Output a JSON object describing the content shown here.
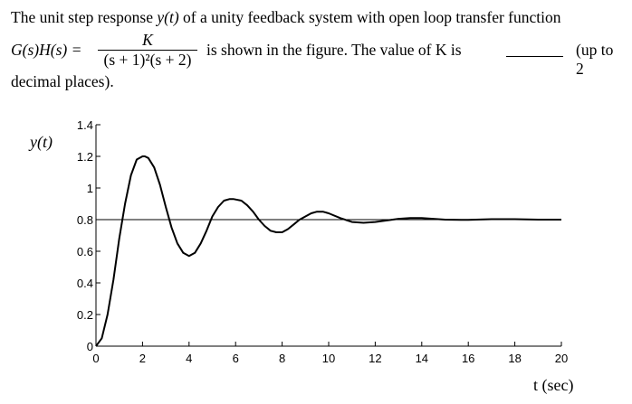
{
  "problem": {
    "line1_prefix": "The unit step response ",
    "line1_var": "y(t)",
    "line1_suffix": " of a unity feedback system with open loop transfer function",
    "lhs": "G(s)H(s) =",
    "numerator": "K",
    "denominator": "(s + 1)²(s + 2)",
    "line2_middle": "is shown in the figure. The value of K is",
    "line2_tail": "(up to 2",
    "line3": "decimal places)."
  },
  "chart_data": {
    "type": "line",
    "title": "",
    "ylabel": "y(t)",
    "xlabel": "t (sec)",
    "xlim": [
      0,
      20
    ],
    "ylim": [
      0,
      1.4
    ],
    "xticks": [
      0,
      2,
      4,
      6,
      8,
      10,
      12,
      14,
      16,
      18,
      20
    ],
    "yticks": [
      0,
      0.2,
      0.4,
      0.6,
      0.8,
      1,
      1.2,
      1.4
    ],
    "xtick_labels": [
      "0",
      "2",
      "4",
      "6",
      "8",
      "10",
      "12",
      "14",
      "16",
      "18",
      "20"
    ],
    "ytick_labels": [
      "0",
      "0.2",
      "0.4",
      "0.6",
      "0.8",
      "1",
      "1.2",
      "1.4"
    ],
    "reference_line": {
      "y": 0.8
    },
    "series": [
      {
        "x": [
          0,
          0.25,
          0.5,
          0.75,
          1,
          1.25,
          1.5,
          1.75,
          2,
          2.1,
          2.25,
          2.5,
          2.75,
          3,
          3.25,
          3.5,
          3.75,
          4,
          4.25,
          4.5,
          4.75,
          5,
          5.25,
          5.5,
          5.75,
          5.9,
          6.25,
          6.5,
          6.75,
          7,
          7.25,
          7.5,
          7.75,
          8,
          8.25,
          8.5,
          8.75,
          9,
          9.25,
          9.5,
          9.75,
          10,
          10.5,
          11,
          11.5,
          12,
          12.5,
          13,
          13.5,
          14,
          14.5,
          15,
          16,
          17,
          18,
          19,
          20
        ],
        "y": [
          0,
          0.05,
          0.2,
          0.42,
          0.68,
          0.9,
          1.08,
          1.18,
          1.2,
          1.2,
          1.19,
          1.13,
          1.02,
          0.88,
          0.75,
          0.65,
          0.59,
          0.57,
          0.59,
          0.65,
          0.73,
          0.82,
          0.88,
          0.92,
          0.93,
          0.93,
          0.92,
          0.89,
          0.85,
          0.8,
          0.76,
          0.73,
          0.72,
          0.72,
          0.74,
          0.77,
          0.8,
          0.82,
          0.84,
          0.85,
          0.85,
          0.84,
          0.81,
          0.785,
          0.78,
          0.785,
          0.795,
          0.805,
          0.81,
          0.81,
          0.805,
          0.8,
          0.798,
          0.803,
          0.803,
          0.8,
          0.8
        ]
      }
    ]
  }
}
